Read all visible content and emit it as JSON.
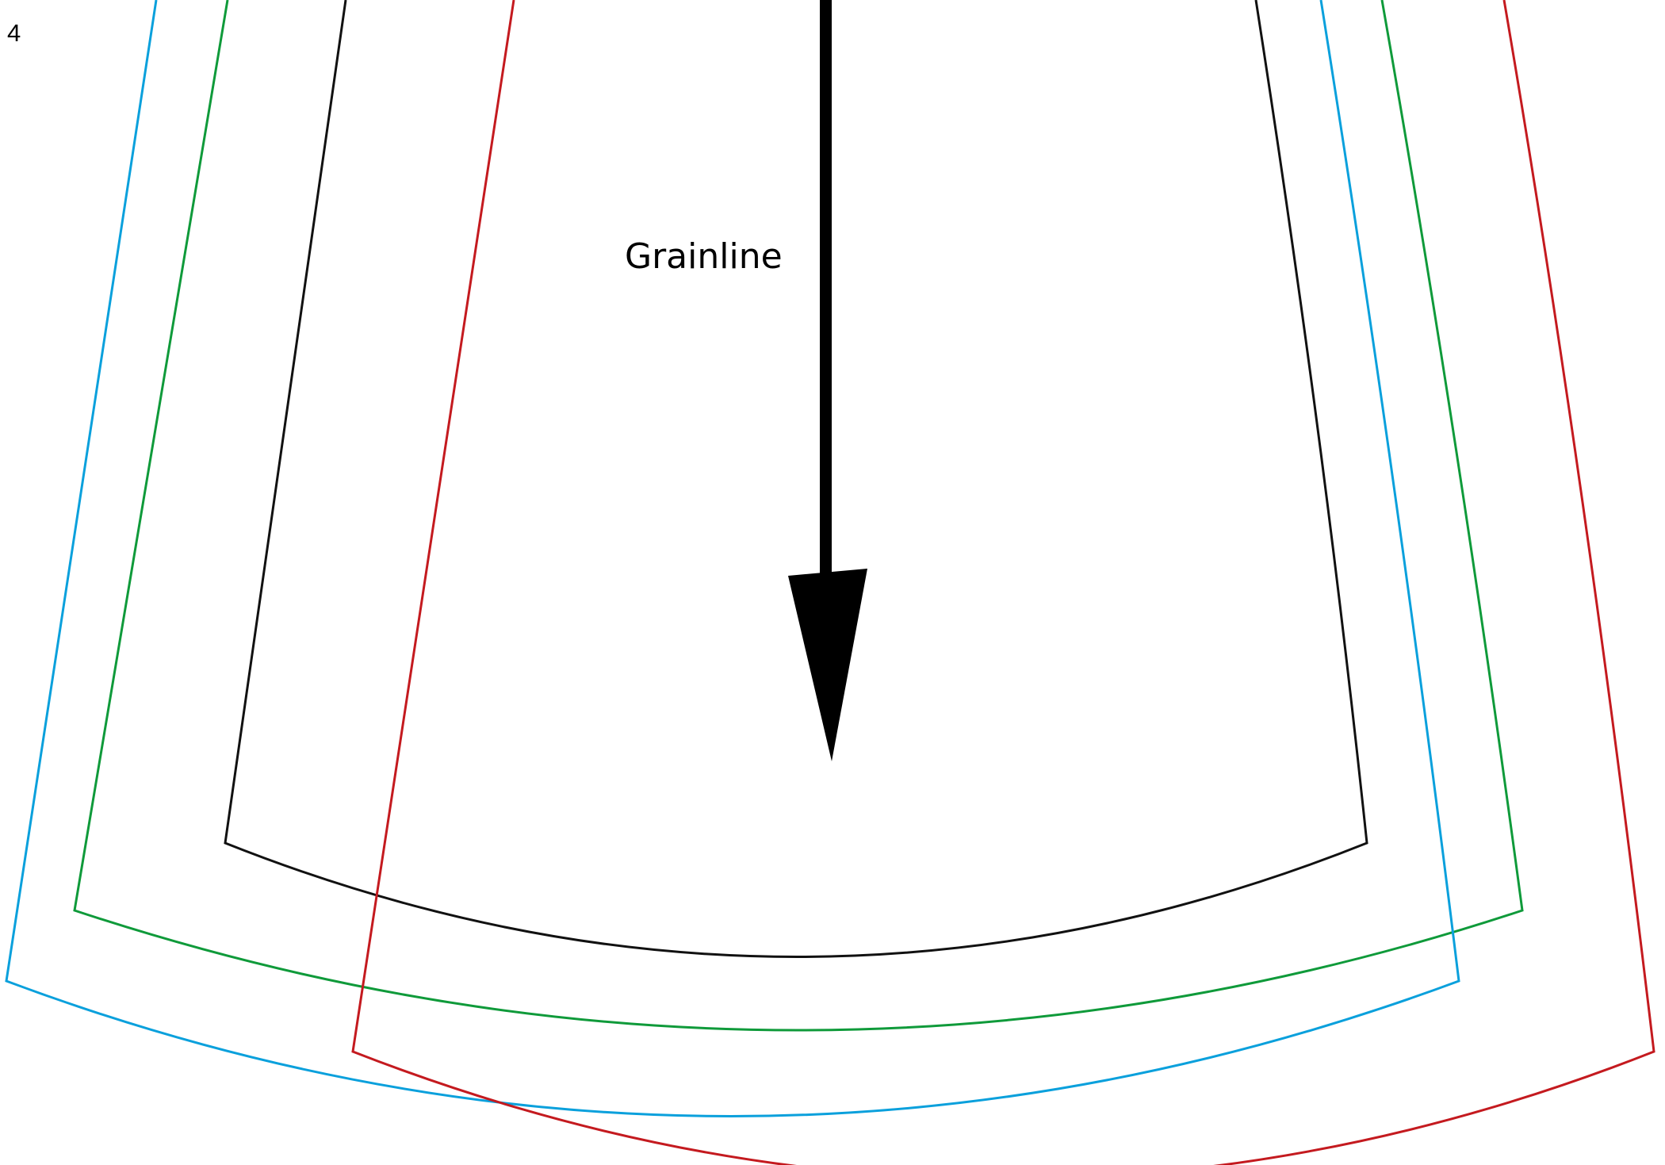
{
  "page_number": "4",
  "grainline": {
    "label": "Grainline"
  },
  "colors": {
    "size_black": "#111111",
    "size_green": "#0f9a3a",
    "size_blue": "#0aa0dc",
    "size_red": "#c41a1f",
    "arrow": "#000000"
  }
}
